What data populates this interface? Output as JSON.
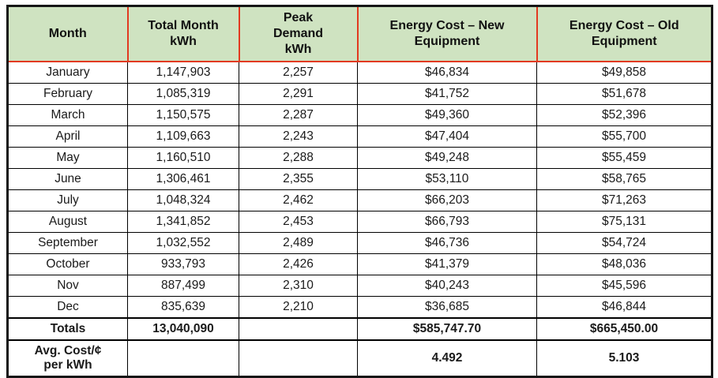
{
  "chart_data": {
    "type": "table",
    "columns": [
      "Month",
      "Total Month kWh",
      "Peak Demand kWh",
      "Energy Cost – New Equipment",
      "Energy Cost – Old Equipment"
    ],
    "header_display": [
      "Month",
      "Total Month\nkWh",
      "Peak\nDemand\nkWh",
      "Energy Cost – New\nEquipment",
      "Energy Cost – Old\nEquipment"
    ],
    "rows": [
      [
        "January",
        "1,147,903",
        "2,257",
        "$46,834",
        "$49,858"
      ],
      [
        "February",
        "1,085,319",
        "2,291",
        "$41,752",
        "$51,678"
      ],
      [
        "March",
        "1,150,575",
        "2,287",
        "$49,360",
        "$52,396"
      ],
      [
        "April",
        "1,109,663",
        "2,243",
        "$47,404",
        "$55,700"
      ],
      [
        "May",
        "1,160,510",
        "2,288",
        "$49,248",
        "$55,459"
      ],
      [
        "June",
        "1,306,461",
        "2,355",
        "$53,110",
        "$58,765"
      ],
      [
        "July",
        "1,048,324",
        "2,462",
        "$66,203",
        "$71,263"
      ],
      [
        "August",
        "1,341,852",
        "2,453",
        "$66,793",
        "$75,131"
      ],
      [
        "September",
        "1,032,552",
        "2,489",
        "$46,736",
        "$54,724"
      ],
      [
        "October",
        "933,793",
        "2,426",
        "$41,379",
        "$48,036"
      ],
      [
        "Nov",
        "887,499",
        "2,310",
        "$40,243",
        "$45,596"
      ],
      [
        "Dec",
        "835,639",
        "2,210",
        "$36,685",
        "$46,844"
      ]
    ],
    "totals_row": [
      "Totals",
      "13,040,090",
      "",
      "$585,747.70",
      "$665,450.00"
    ],
    "avg_row": [
      "Avg. Cost/¢\nper kWh",
      "",
      "",
      "4.492",
      "5.103"
    ]
  },
  "colors": {
    "header_bg": "#cfe3c1",
    "header_border": "#e23a20",
    "grid_border": "#000000",
    "outer_border": "#161616",
    "text": "#1a1a1a"
  }
}
